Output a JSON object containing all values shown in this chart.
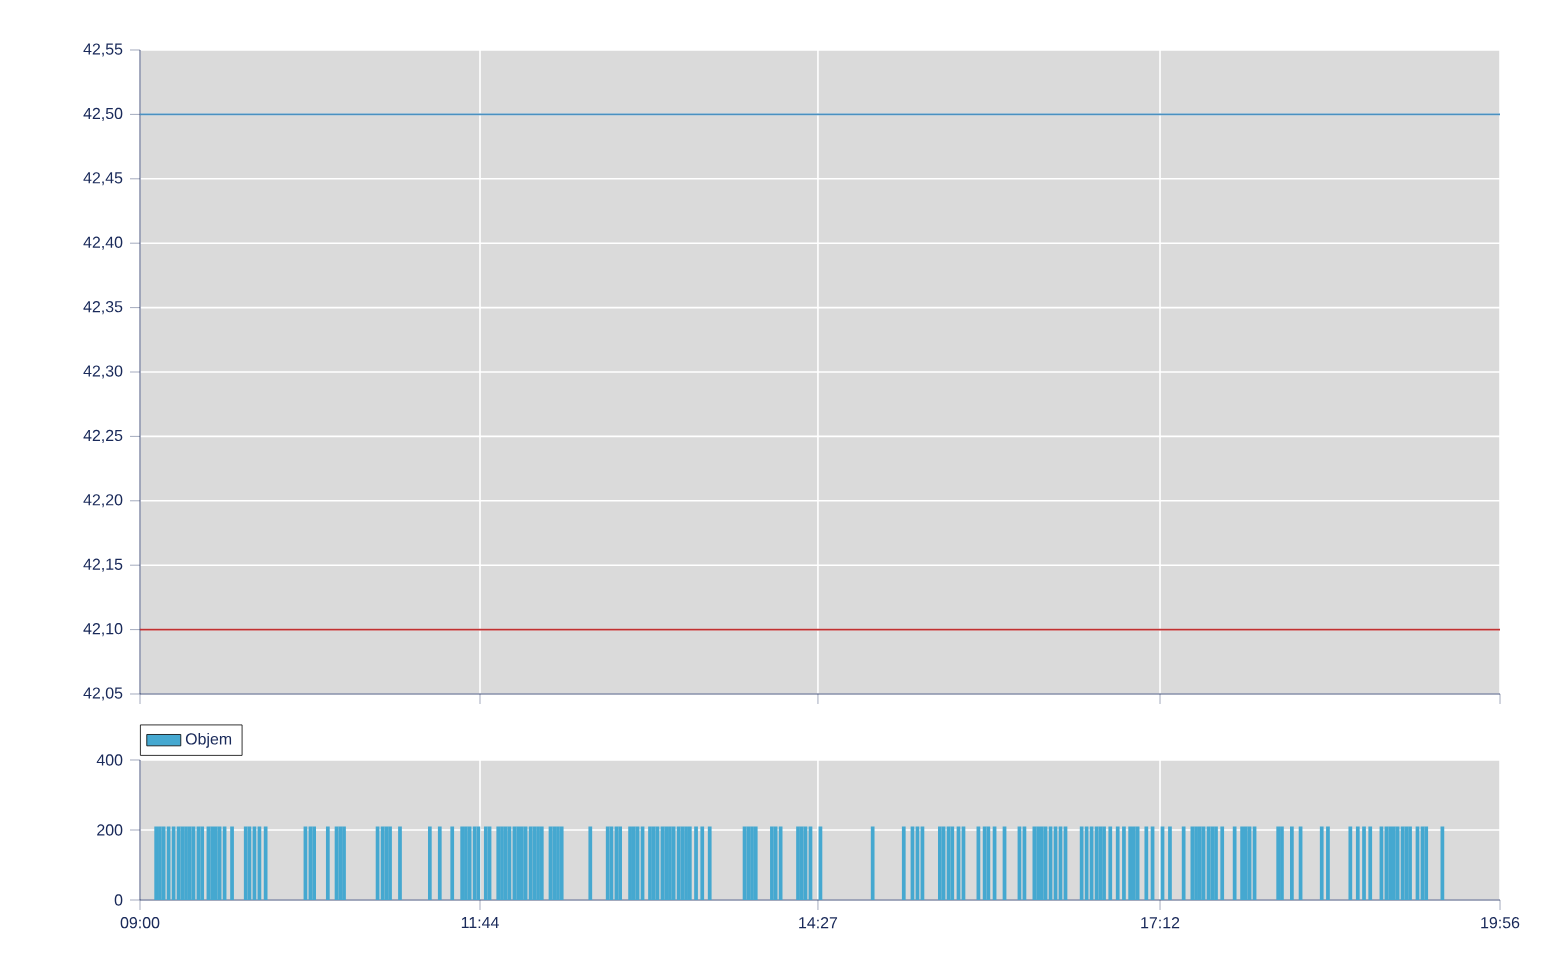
{
  "chart_data": [
    {
      "type": "line",
      "xlim": [
        9,
        19.9333
      ],
      "ylim": [
        42.05,
        42.55
      ],
      "xticks": [
        {
          "value": 9,
          "label": null
        },
        {
          "value": 11.7333,
          "label": null
        },
        {
          "value": 14.45,
          "label": null
        },
        {
          "value": 17.2,
          "label": null
        },
        {
          "value": 19.9333,
          "label": null
        }
      ],
      "yticks": [
        {
          "value": 42.05,
          "label": "42,05"
        },
        {
          "value": 42.1,
          "label": "42,10"
        },
        {
          "value": 42.15,
          "label": "42,15"
        },
        {
          "value": 42.2,
          "label": "42,20"
        },
        {
          "value": 42.25,
          "label": "42,25"
        },
        {
          "value": 42.3,
          "label": "42,30"
        },
        {
          "value": 42.35,
          "label": "42,35"
        },
        {
          "value": 42.4,
          "label": "42,40"
        },
        {
          "value": 42.45,
          "label": "42,45"
        },
        {
          "value": 42.5,
          "label": "42,50"
        },
        {
          "value": 42.55,
          "label": "42,55"
        }
      ],
      "grid": true,
      "tick_labels": "y",
      "ref_lines": [
        {
          "axis": "y",
          "value": 42.5,
          "color": "#4a90c0"
        },
        {
          "axis": "y",
          "value": 42.1,
          "color": "#c03030"
        }
      ]
    },
    {
      "type": "bar",
      "xlim": [
        9,
        19.9333
      ],
      "ylim": [
        0,
        400
      ],
      "xticks": [
        {
          "value": 9,
          "label": "09:00"
        },
        {
          "value": 11.7333,
          "label": "11:44"
        },
        {
          "value": 14.45,
          "label": "14:27"
        },
        {
          "value": 17.2,
          "label": "17:12"
        },
        {
          "value": 19.9333,
          "label": "19:56"
        }
      ],
      "yticks": [
        0,
        200,
        400
      ],
      "grid": true,
      "legend": "top left",
      "x": [
        9.13,
        9.16,
        9.19,
        9.23,
        9.27,
        9.31,
        9.34,
        9.37,
        9.4,
        9.43,
        9.47,
        9.5,
        9.55,
        9.58,
        9.61,
        9.64,
        9.68,
        9.74,
        9.85,
        9.88,
        9.92,
        9.96,
        10.01,
        10.33,
        10.37,
        10.4,
        10.51,
        10.58,
        10.61,
        10.64,
        10.91,
        10.95,
        10.98,
        11.01,
        11.09,
        11.33,
        11.41,
        11.51,
        11.59,
        11.62,
        11.65,
        11.69,
        11.72,
        11.78,
        11.81,
        11.88,
        11.91,
        11.94,
        11.97,
        12.01,
        12.04,
        12.07,
        12.1,
        12.14,
        12.17,
        12.2,
        12.23,
        12.3,
        12.33,
        12.36,
        12.39,
        12.62,
        12.76,
        12.79,
        12.83,
        12.86,
        12.94,
        12.97,
        13.0,
        13.04,
        13.1,
        13.13,
        13.16,
        13.2,
        13.23,
        13.26,
        13.29,
        13.33,
        13.36,
        13.39,
        13.42,
        13.47,
        13.52,
        13.58,
        13.86,
        13.89,
        13.92,
        13.95,
        14.08,
        14.11,
        14.15,
        14.29,
        14.32,
        14.35,
        14.39,
        14.47,
        14.89,
        15.14,
        15.21,
        15.25,
        15.29,
        15.43,
        15.46,
        15.5,
        15.53,
        15.58,
        15.62,
        15.74,
        15.79,
        15.82,
        15.87,
        15.95,
        16.07,
        16.11,
        16.19,
        16.22,
        16.25,
        16.28,
        16.32,
        16.36,
        16.4,
        16.44,
        16.57,
        16.61,
        16.65,
        16.69,
        16.72,
        16.75,
        16.8,
        16.86,
        16.91,
        16.96,
        16.99,
        17.02,
        17.09,
        17.14,
        17.22,
        17.28,
        17.39,
        17.46,
        17.49,
        17.52,
        17.55,
        17.59,
        17.62,
        17.65,
        17.7,
        17.8,
        17.86,
        17.89,
        17.92,
        17.96,
        18.15,
        18.18,
        18.26,
        18.33,
        18.5,
        18.55,
        18.73,
        18.79,
        18.84,
        18.89,
        18.98,
        19.02,
        19.05,
        19.08,
        19.11,
        19.15,
        19.18,
        19.21,
        19.27,
        19.31,
        19.34,
        19.47
      ],
      "series": [
        {
          "name": "Objem",
          "color": "#45a8d0",
          "values": [
            210,
            210,
            210,
            210,
            210,
            210,
            210,
            210,
            210,
            210,
            210,
            210,
            210,
            210,
            210,
            210,
            210,
            210,
            210,
            210,
            210,
            210,
            210,
            210,
            210,
            210,
            210,
            210,
            210,
            210,
            210,
            210,
            210,
            210,
            210,
            210,
            210,
            210,
            210,
            210,
            210,
            210,
            210,
            210,
            210,
            210,
            210,
            210,
            210,
            210,
            210,
            210,
            210,
            210,
            210,
            210,
            210,
            210,
            210,
            210,
            210,
            210,
            210,
            210,
            210,
            210,
            210,
            210,
            210,
            210,
            210,
            210,
            210,
            210,
            210,
            210,
            210,
            210,
            210,
            210,
            210,
            210,
            210,
            210,
            210,
            210,
            210,
            210,
            210,
            210,
            210,
            210,
            210,
            210,
            210,
            210,
            210,
            210,
            210,
            210,
            210,
            210,
            210,
            210,
            210,
            210,
            210,
            210,
            210,
            210,
            210,
            210,
            210,
            210,
            210,
            210,
            210,
            210,
            210,
            210,
            210,
            210,
            210,
            210,
            210,
            210,
            210,
            210,
            210,
            210,
            210,
            210,
            210,
            210,
            210,
            210,
            210,
            210,
            210,
            210,
            210,
            210,
            210,
            210,
            210,
            210,
            210,
            210,
            210,
            210,
            210,
            210,
            210,
            210,
            210,
            210,
            210,
            210,
            210,
            210,
            210,
            210,
            210,
            210,
            210,
            210,
            210,
            210,
            210,
            210,
            210,
            210,
            210,
            210
          ]
        }
      ]
    }
  ]
}
